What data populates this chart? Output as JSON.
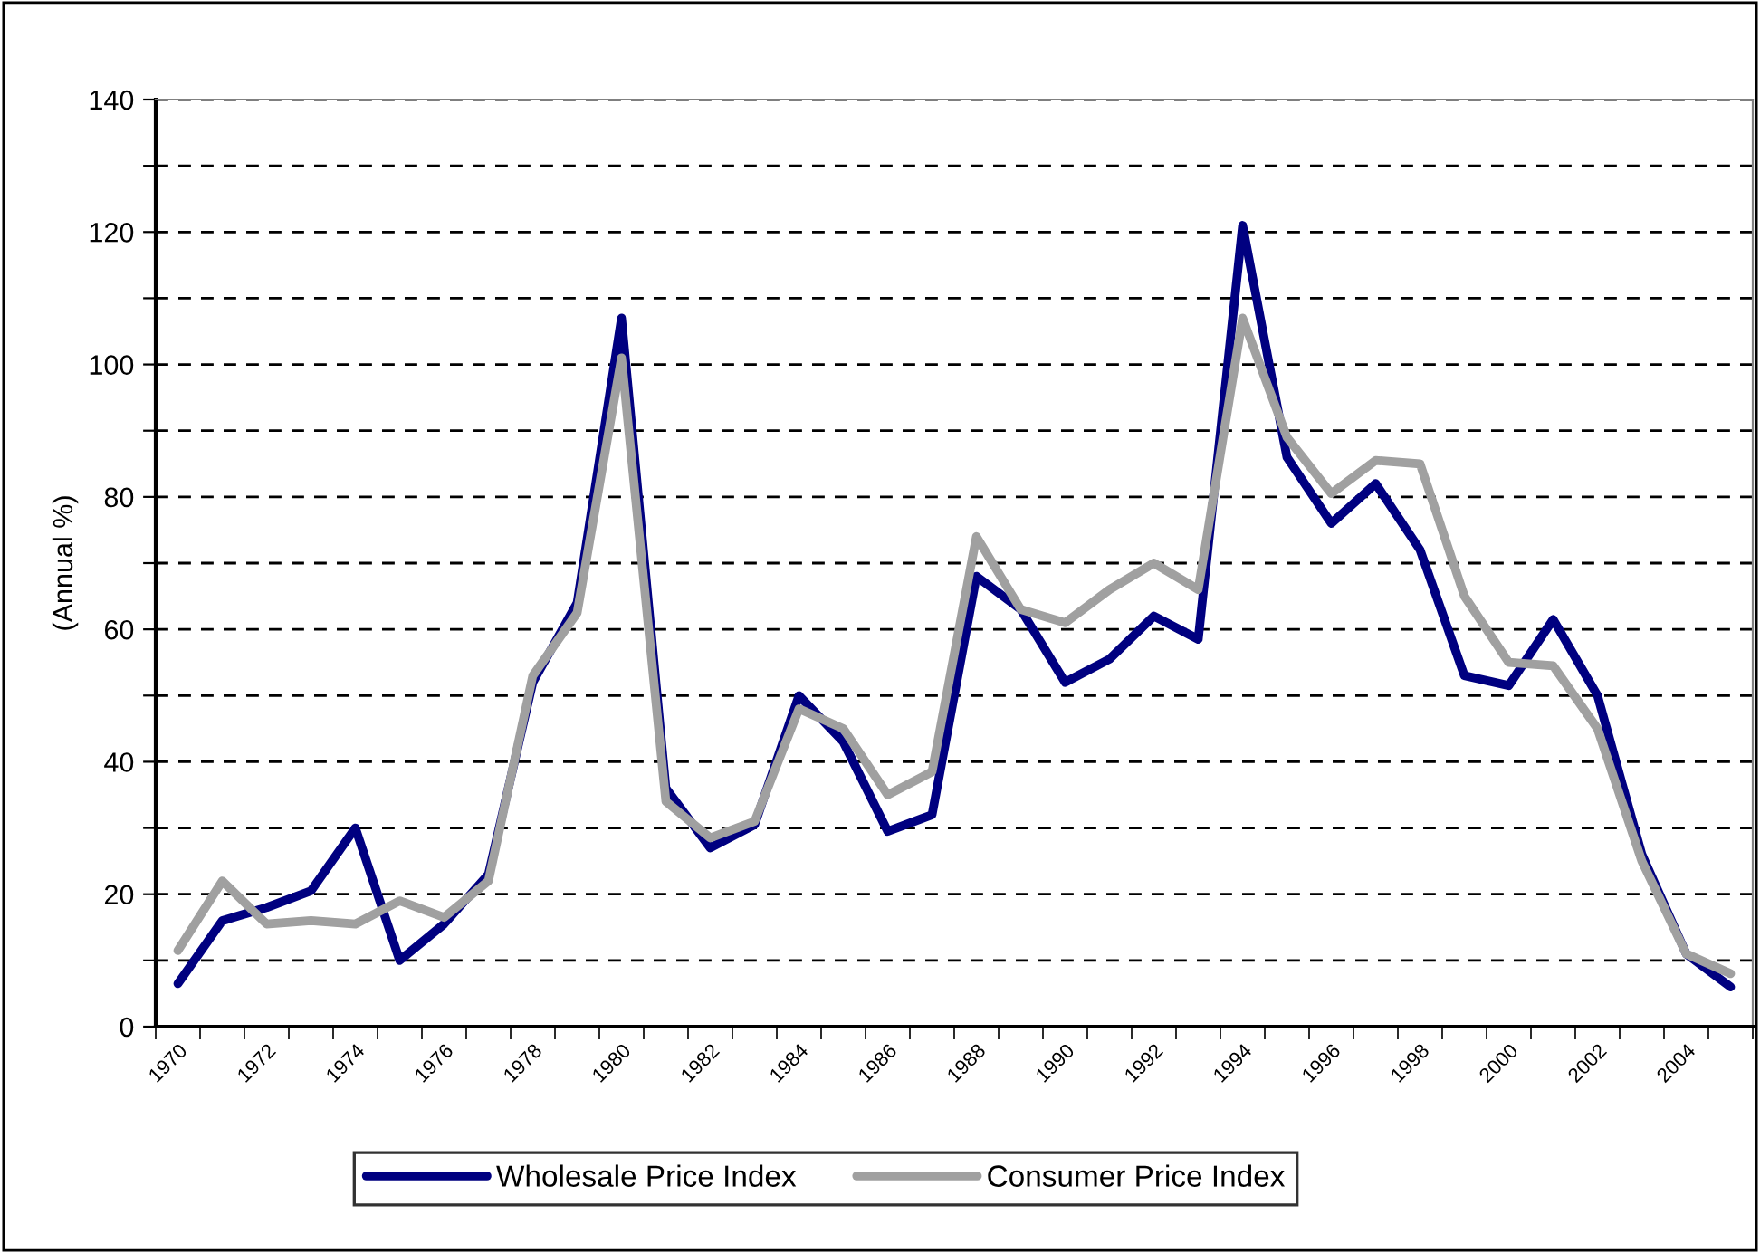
{
  "chart_data": {
    "type": "line",
    "ylabel": "(Annual %)",
    "categories": [
      "1970",
      null,
      "1972",
      null,
      "1974",
      null,
      "1976",
      null,
      "1978",
      null,
      "1980",
      null,
      "1982",
      null,
      "1984",
      null,
      "1986",
      null,
      "1988",
      null,
      "1990",
      null,
      "1992",
      null,
      "1994",
      null,
      "1996",
      null,
      "1998",
      null,
      "2000",
      null,
      "2002",
      null,
      "2004",
      null
    ],
    "series": [
      {
        "name": "Wholesale Price Index",
        "color": "#000080",
        "values": [
          6.5,
          16,
          18,
          20.5,
          30,
          10,
          15.5,
          23,
          52,
          64,
          107,
          36,
          27,
          30.5,
          50,
          43,
          29.5,
          32,
          68,
          63,
          52,
          55.5,
          62,
          58.5,
          121,
          86,
          76,
          82,
          72,
          53,
          51.5,
          61.5,
          50,
          26,
          11,
          6
        ]
      },
      {
        "name": "Consumer Price Index",
        "color": "#a0a0a0",
        "values": [
          11.5,
          22,
          15.5,
          16,
          15.5,
          19,
          16.5,
          22,
          53,
          62.5,
          101,
          34,
          28.5,
          31,
          48,
          45,
          35,
          38.5,
          74,
          63,
          61,
          66,
          70,
          66,
          107,
          89,
          80.5,
          85.5,
          85,
          65,
          55,
          54.5,
          45,
          25,
          11,
          8
        ]
      }
    ],
    "ylim": [
      0,
      140
    ],
    "yticks": [
      0,
      {
        "value": 10,
        "label": null
      },
      20,
      {
        "value": 30,
        "label": null
      },
      40,
      {
        "value": 50,
        "label": null
      },
      60,
      {
        "value": 70,
        "label": null
      },
      80,
      {
        "value": 90,
        "label": null
      },
      100,
      {
        "value": 110,
        "label": null
      },
      120,
      {
        "value": 130,
        "label": null
      },
      140
    ],
    "grid": "y",
    "legend": "bottom",
    "line_style": "solid",
    "marker": "none"
  }
}
